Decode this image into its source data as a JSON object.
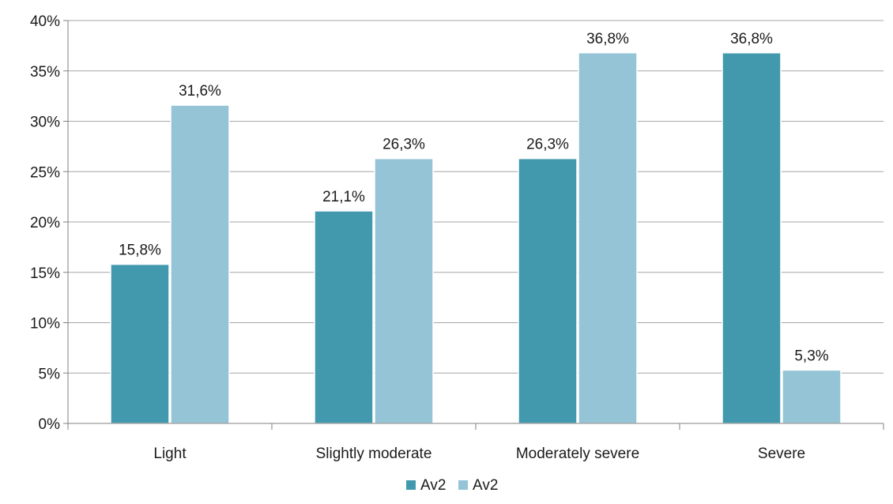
{
  "chart_data": {
    "type": "bar",
    "categories": [
      "Light",
      "Slightly moderate",
      "Moderately severe",
      "Severe"
    ],
    "series": [
      {
        "name": "Av2",
        "values": [
          15.8,
          21.1,
          26.3,
          36.8
        ],
        "labels": [
          "15,8%",
          "21,1%",
          "26,3%",
          "36,8%"
        ],
        "color": "#4299ae"
      },
      {
        "name": "Av2",
        "values": [
          31.6,
          26.3,
          36.8,
          5.3
        ],
        "labels": [
          "31,6%",
          "26,3%",
          "36,8%",
          "5,3%"
        ],
        "color": "#94c4d6"
      }
    ],
    "y_ticks": [
      "0%",
      "5%",
      "10%",
      "15%",
      "20%",
      "25%",
      "30%",
      "35%",
      "40%"
    ],
    "ylim": [
      0,
      40
    ],
    "ytick_step": 5,
    "grid": true,
    "legend_position": "bottom",
    "title": "",
    "xlabel": "",
    "ylabel": ""
  }
}
